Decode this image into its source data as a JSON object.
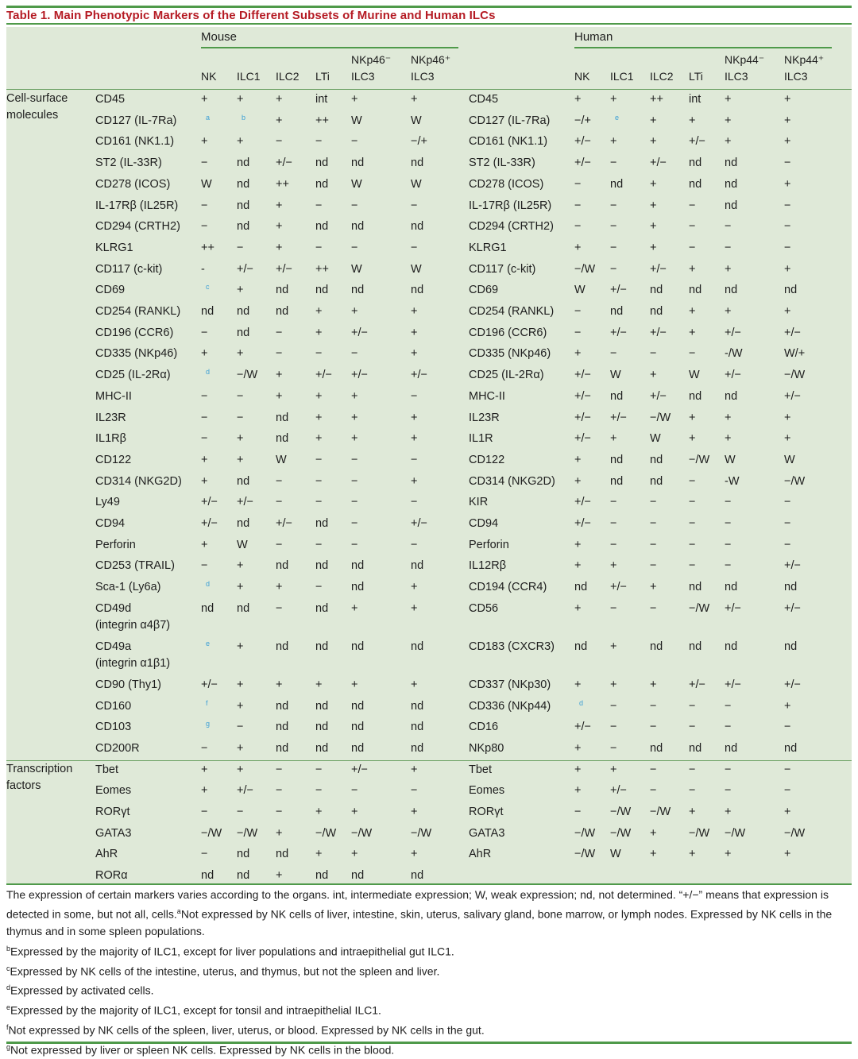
{
  "title": "Table 1.  Main Phenotypic Markers of the Different Subsets of Murine and Human ILCs",
  "groups": {
    "mouse": "Mouse",
    "human": "Human"
  },
  "columns": {
    "mouse": [
      {
        "l1": "",
        "l2": "NK"
      },
      {
        "l1": "",
        "l2": "ILC1"
      },
      {
        "l1": "",
        "l2": "ILC2"
      },
      {
        "l1": "",
        "l2": "LTi"
      },
      {
        "l1": "NKp46⁻",
        "l2": "ILC3"
      },
      {
        "l1": "NKp46⁺",
        "l2": "ILC3"
      }
    ],
    "human": [
      {
        "l1": "",
        "l2": "NK"
      },
      {
        "l1": "",
        "l2": "ILC1"
      },
      {
        "l1": "",
        "l2": "ILC2"
      },
      {
        "l1": "",
        "l2": "LTi"
      },
      {
        "l1": "NKp44⁻",
        "l2": "ILC3"
      },
      {
        "l1": "NKp44⁺",
        "l2": "ILC3"
      }
    ]
  },
  "categories": [
    {
      "label1": "Cell-surface",
      "label2": "molecules"
    },
    {
      "label1": "Transcription",
      "label2": "factors"
    }
  ],
  "rows": [
    {
      "m": "CD45",
      "mv": [
        "+",
        "+",
        "+",
        "int",
        "+",
        "+"
      ],
      "h": "CD45",
      "hv": [
        "+",
        "+",
        "++",
        "int",
        "+",
        "+"
      ]
    },
    {
      "m": "CD127 (IL-7Ra)",
      "mv": [
        "a",
        "b",
        "+",
        "++",
        "W",
        "W"
      ],
      "h": "CD127 (IL-7Ra)",
      "hv": [
        "−/+",
        "e",
        "+",
        "+",
        "+",
        "+"
      ]
    },
    {
      "m": "CD161 (NK1.1)",
      "mv": [
        "+",
        "+",
        "−",
        "−",
        "−",
        "−/+"
      ],
      "h": "CD161 (NK1.1)",
      "hv": [
        "+/−",
        "+",
        "+",
        "+/−",
        "+",
        "+"
      ]
    },
    {
      "m": "ST2 (IL-33R)",
      "mv": [
        "−",
        "nd",
        "+/−",
        "nd",
        "nd",
        "nd"
      ],
      "h": "ST2 (IL-33R)",
      "hv": [
        "+/−",
        "−",
        "+/−",
        "nd",
        "nd",
        "−"
      ]
    },
    {
      "m": "CD278 (ICOS)",
      "mv": [
        "W",
        "nd",
        "++",
        "nd",
        "W",
        "W"
      ],
      "h": "CD278 (ICOS)",
      "hv": [
        "−",
        "nd",
        "+",
        "nd",
        "nd",
        "+"
      ]
    },
    {
      "m": "IL-17Rβ (IL25R)",
      "mv": [
        "−",
        "nd",
        "+",
        "−",
        "−",
        "−"
      ],
      "h": "IL-17Rβ (IL25R)",
      "hv": [
        "−",
        "−",
        "+",
        "−",
        "nd",
        "−"
      ]
    },
    {
      "m": "CD294 (CRTH2)",
      "mv": [
        "−",
        "nd",
        "+",
        "nd",
        "nd",
        "nd"
      ],
      "h": "CD294 (CRTH2)",
      "hv": [
        "−",
        "−",
        "+",
        "−",
        "−",
        "−"
      ]
    },
    {
      "m": "KLRG1",
      "mv": [
        "++",
        "−",
        "+",
        "−",
        "−",
        "−"
      ],
      "h": "KLRG1",
      "hv": [
        "+",
        "−",
        "+",
        "−",
        "−",
        "−"
      ]
    },
    {
      "m": "CD117 (c-kit)",
      "mv": [
        "-",
        "+/−",
        "+/−",
        "++",
        "W",
        "W"
      ],
      "h": "CD117 (c-kit)",
      "hv": [
        "−/W",
        "−",
        "+/−",
        "+",
        "+",
        "+"
      ]
    },
    {
      "m": "CD69",
      "mv": [
        "c",
        "+",
        "nd",
        "nd",
        "nd",
        "nd"
      ],
      "h": "CD69",
      "hv": [
        "W",
        "+/−",
        "nd",
        "nd",
        "nd",
        "nd"
      ]
    },
    {
      "m": "CD254 (RANKL)",
      "mv": [
        "nd",
        "nd",
        "nd",
        "+",
        "+",
        "+"
      ],
      "h": "CD254 (RANKL)",
      "hv": [
        "−",
        "nd",
        "nd",
        "+",
        "+",
        "+"
      ]
    },
    {
      "m": "CD196 (CCR6)",
      "mv": [
        "−",
        "nd",
        "−",
        "+",
        "+/−",
        "+"
      ],
      "h": "CD196 (CCR6)",
      "hv": [
        "−",
        "+/−",
        "+/−",
        "+",
        "+/−",
        "+/−"
      ]
    },
    {
      "m": "CD335 (NKp46)",
      "mv": [
        "+",
        "+",
        "−",
        "−",
        "−",
        "+"
      ],
      "h": "CD335 (NKp46)",
      "hv": [
        "+",
        "−",
        "−",
        "−",
        "-/W",
        "W/+"
      ]
    },
    {
      "m": "CD25 (IL-2Rα)",
      "mv": [
        "d",
        "−/W",
        "+",
        "+/−",
        "+/−",
        "+/−"
      ],
      "h": "CD25 (IL-2Rα)",
      "hv": [
        "+/−",
        "W",
        "+",
        "W",
        "+/−",
        "−/W"
      ]
    },
    {
      "m": "MHC-II",
      "mv": [
        "−",
        "−",
        "+",
        "+",
        "+",
        "−"
      ],
      "h": "MHC-II",
      "hv": [
        "+/−",
        "nd",
        "+/−",
        "nd",
        "nd",
        "+/−"
      ]
    },
    {
      "m": "IL23R",
      "mv": [
        "−",
        "−",
        "nd",
        "+",
        "+",
        "+"
      ],
      "h": "IL23R",
      "hv": [
        "+/−",
        "+/−",
        "−/W",
        "+",
        "+",
        "+"
      ]
    },
    {
      "m": "IL1Rβ",
      "mv": [
        "−",
        "+",
        "nd",
        "+",
        "+",
        "+"
      ],
      "h": "IL1R",
      "hv": [
        "+/−",
        "+",
        "W",
        "+",
        "+",
        "+"
      ]
    },
    {
      "m": "CD122",
      "mv": [
        "+",
        "+",
        "W",
        "−",
        "−",
        "−"
      ],
      "h": "CD122",
      "hv": [
        "+",
        "nd",
        "nd",
        "−/W",
        "W",
        "W"
      ]
    },
    {
      "m": "CD314 (NKG2D)",
      "mv": [
        "+",
        "nd",
        "−",
        "−",
        "−",
        "+"
      ],
      "h": "CD314 (NKG2D)",
      "hv": [
        "+",
        "nd",
        "nd",
        "−",
        "-W",
        "−/W"
      ]
    },
    {
      "m": "Ly49",
      "mv": [
        "+/−",
        "+/−",
        "−",
        "−",
        "−",
        "−"
      ],
      "h": "KIR",
      "hv": [
        "+/−",
        "−",
        "−",
        "−",
        "−",
        "−"
      ]
    },
    {
      "m": "CD94",
      "mv": [
        "+/−",
        "nd",
        "+/−",
        "nd",
        "−",
        "+/−"
      ],
      "h": "CD94",
      "hv": [
        "+/−",
        "−",
        "−",
        "−",
        "−",
        "−"
      ]
    },
    {
      "m": "Perforin",
      "mv": [
        "+",
        "W",
        "−",
        "−",
        "−",
        "−"
      ],
      "h": "Perforin",
      "hv": [
        "+",
        "−",
        "−",
        "−",
        "−",
        "−"
      ]
    },
    {
      "m": "CD253 (TRAIL)",
      "mv": [
        "−",
        "+",
        "nd",
        "nd",
        "nd",
        "nd"
      ],
      "h": "IL12Rβ",
      "hv": [
        "+",
        "+",
        "−",
        "−",
        "−",
        "+/−"
      ]
    },
    {
      "m": "Sca-1 (Ly6a)",
      "mv": [
        "d",
        "+",
        "+",
        "−",
        "nd",
        "+"
      ],
      "h": "CD194 (CCR4)",
      "hv": [
        "nd",
        "+/−",
        "+",
        "nd",
        "nd",
        "nd"
      ]
    },
    {
      "m": "CD49d",
      "m2": "(integrin α4β7)",
      "mv": [
        "nd",
        "nd",
        "−",
        "nd",
        "+",
        "+"
      ],
      "h": "CD56",
      "hv": [
        "+",
        "−",
        "−",
        "−/W",
        "+/−",
        "+/−"
      ]
    },
    {
      "m": "CD49a",
      "m2": "(integrin α1β1)",
      "mv": [
        "e",
        "+",
        "nd",
        "nd",
        "nd",
        "nd"
      ],
      "h": "CD183 (CXCR3)",
      "hv": [
        "nd",
        "+",
        "nd",
        "nd",
        "nd",
        "nd"
      ]
    },
    {
      "m": "CD90 (Thy1)",
      "mv": [
        "+/−",
        "+",
        "+",
        "+",
        "+",
        "+"
      ],
      "h": "CD337 (NKp30)",
      "hv": [
        "+",
        "+",
        "+",
        "+/−",
        "+/−",
        "+/−"
      ]
    },
    {
      "m": "CD160",
      "mv": [
        "f",
        "+",
        "nd",
        "nd",
        "nd",
        "nd"
      ],
      "h": "CD336 (NKp44)",
      "hv": [
        "d",
        "−",
        "−",
        "−",
        "−",
        "+"
      ]
    },
    {
      "m": "CD103",
      "mv": [
        "g",
        "−",
        "nd",
        "nd",
        "nd",
        "nd"
      ],
      "h": "CD16",
      "hv": [
        "+/−",
        "−",
        "−",
        "−",
        "−",
        "−"
      ]
    },
    {
      "m": "CD200R",
      "mv": [
        "−",
        "+",
        "nd",
        "nd",
        "nd",
        "nd"
      ],
      "h": "NKp80",
      "hv": [
        "+",
        "−",
        "nd",
        "nd",
        "nd",
        "nd"
      ]
    },
    {
      "m": "Tbet",
      "mv": [
        "+",
        "+",
        "−",
        "−",
        "+/−",
        "+"
      ],
      "h": "Tbet",
      "hv": [
        "+",
        "+",
        "−",
        "−",
        "−",
        "−"
      ]
    },
    {
      "m": "Eomes",
      "mv": [
        "+",
        "+/−",
        "−",
        "−",
        "−",
        "−"
      ],
      "h": "Eomes",
      "hv": [
        "+",
        "+/−",
        "−",
        "−",
        "−",
        "−"
      ]
    },
    {
      "m": "RORγt",
      "mv": [
        "−",
        "−",
        "−",
        "+",
        "+",
        "+"
      ],
      "h": "RORγt",
      "hv": [
        "−",
        "−/W",
        "−/W",
        "+",
        "+",
        "+"
      ]
    },
    {
      "m": "GATA3",
      "mv": [
        "−/W",
        "−/W",
        "+",
        "−/W",
        "−/W",
        "−/W"
      ],
      "h": "GATA3",
      "hv": [
        "−/W",
        "−/W",
        "+",
        "−/W",
        "−/W",
        "−/W"
      ]
    },
    {
      "m": "AhR",
      "mv": [
        "−",
        "nd",
        "nd",
        "+",
        "+",
        "+"
      ],
      "h": "AhR",
      "hv": [
        "−/W",
        "W",
        "+",
        "+",
        "+",
        "+"
      ]
    },
    {
      "m": "RORα",
      "mv": [
        "nd",
        "nd",
        "+",
        "nd",
        "nd",
        "nd"
      ],
      "h": "",
      "hv": [
        "",
        "",
        "",
        "",
        "",
        ""
      ]
    }
  ],
  "notes": {
    "main": "The expression of certain markers varies according to the organs. int, intermediate expression; W, weak expression; nd, not determined. “+/−” means that expression is detected in some, but not all, cells.",
    "a_sup": "a",
    "a": "Not expressed by NK cells of liver, intestine, skin, uterus, salivary gland, bone marrow, or lymph nodes. Expressed by NK cells in the thymus and in some spleen populations.",
    "b_sup": "b",
    "b": "Expressed by the majority of ILC1, except for liver populations and intraepithelial gut ILC1.",
    "c_sup": "c",
    "c": "Expressed by NK cells of the intestine, uterus, and thymus, but not the spleen and liver.",
    "d_sup": "d",
    "d": "Expressed by activated cells.",
    "e_sup": "e",
    "e": "Expressed by the majority of ILC1, except for tonsil and intraepithelial ILC1.",
    "f_sup": "f",
    "f": "Not expressed by NK cells of the spleen, liver, uterus, or blood. Expressed by NK cells in the gut.",
    "g_sup": "g",
    "g": "Not expressed by liver or spleen NK cells. Expressed by NK cells in the blood."
  }
}
